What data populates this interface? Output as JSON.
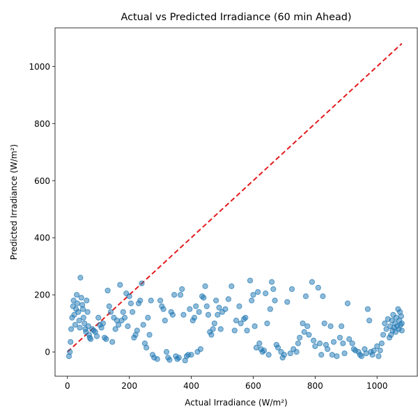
{
  "chart_data": {
    "type": "scatter",
    "title": "Actual vs Predicted Irradiance (60 min Ahead)",
    "xlabel": "Actual Irradiance (W/m²)",
    "ylabel": "Predicted Irradiance (W/m²)",
    "xlim": [
      -40,
      1130
    ],
    "ylim": [
      -85,
      1135
    ],
    "xticks": [
      0,
      200,
      400,
      600,
      800,
      1000
    ],
    "yticks": [
      0,
      200,
      400,
      600,
      800,
      1000
    ],
    "xtick_labels": [
      "0",
      "200",
      "400",
      "600",
      "800",
      "1000"
    ],
    "ytick_labels": [
      "0",
      "200",
      "400",
      "600",
      "800",
      "1000"
    ],
    "grid": false,
    "colors": {
      "points": "#1f77b4",
      "reference_line": "#e31a1c"
    },
    "reference_line": {
      "style": "dashed",
      "x": [
        0,
        1080
      ],
      "y": [
        0,
        1080
      ]
    },
    "series": [
      {
        "points": [
          [
            5,
            -15
          ],
          [
            8,
            0
          ],
          [
            10,
            35
          ],
          [
            12,
            80
          ],
          [
            15,
            120
          ],
          [
            18,
            160
          ],
          [
            20,
            180
          ],
          [
            22,
            130
          ],
          [
            25,
            95
          ],
          [
            28,
            150
          ],
          [
            30,
            200
          ],
          [
            32,
            170
          ],
          [
            35,
            140
          ],
          [
            38,
            110
          ],
          [
            40,
            85
          ],
          [
            42,
            260
          ],
          [
            45,
            190
          ],
          [
            48,
            165
          ],
          [
            50,
            150
          ],
          [
            52,
            120
          ],
          [
            55,
            100
          ],
          [
            58,
            80
          ],
          [
            60,
            70
          ],
          [
            62,
            180
          ],
          [
            65,
            140
          ],
          [
            68,
            90
          ],
          [
            70,
            60
          ],
          [
            72,
            50
          ],
          [
            75,
            45
          ],
          [
            80,
            80
          ],
          [
            85,
            75
          ],
          [
            90,
            70
          ],
          [
            95,
            55
          ],
          [
            100,
            120
          ],
          [
            105,
            95
          ],
          [
            110,
            85
          ],
          [
            115,
            100
          ],
          [
            120,
            50
          ],
          [
            125,
            45
          ],
          [
            130,
            215
          ],
          [
            135,
            160
          ],
          [
            140,
            140
          ],
          [
            145,
            35
          ],
          [
            150,
            120
          ],
          [
            155,
            80
          ],
          [
            160,
            110
          ],
          [
            165,
            95
          ],
          [
            170,
            235
          ],
          [
            175,
            110
          ],
          [
            180,
            140
          ],
          [
            185,
            120
          ],
          [
            190,
            205
          ],
          [
            195,
            90
          ],
          [
            200,
            195
          ],
          [
            205,
            170
          ],
          [
            210,
            140
          ],
          [
            215,
            50
          ],
          [
            220,
            60
          ],
          [
            225,
            75
          ],
          [
            230,
            170
          ],
          [
            235,
            180
          ],
          [
            240,
            240
          ],
          [
            245,
            95
          ],
          [
            250,
            30
          ],
          [
            255,
            15
          ],
          [
            260,
            120
          ],
          [
            265,
            60
          ],
          [
            270,
            180
          ],
          [
            275,
            -10
          ],
          [
            280,
            -20
          ],
          [
            290,
            -25
          ],
          [
            300,
            180
          ],
          [
            305,
            160
          ],
          [
            310,
            150
          ],
          [
            315,
            110
          ],
          [
            320,
            0
          ],
          [
            325,
            -20
          ],
          [
            330,
            -28
          ],
          [
            335,
            140
          ],
          [
            340,
            130
          ],
          [
            345,
            200
          ],
          [
            350,
            -15
          ],
          [
            355,
            -25
          ],
          [
            360,
            -20
          ],
          [
            365,
            200
          ],
          [
            370,
            220
          ],
          [
            375,
            130
          ],
          [
            380,
            -30
          ],
          [
            385,
            -15
          ],
          [
            390,
            -10
          ],
          [
            395,
            150
          ],
          [
            400,
            -10
          ],
          [
            405,
            110
          ],
          [
            410,
            120
          ],
          [
            415,
            160
          ],
          [
            420,
            0
          ],
          [
            425,
            140
          ],
          [
            430,
            10
          ],
          [
            435,
            195
          ],
          [
            440,
            190
          ],
          [
            445,
            230
          ],
          [
            450,
            160
          ],
          [
            455,
            130
          ],
          [
            460,
            70
          ],
          [
            465,
            60
          ],
          [
            470,
            80
          ],
          [
            475,
            100
          ],
          [
            480,
            180
          ],
          [
            485,
            130
          ],
          [
            490,
            155
          ],
          [
            495,
            80
          ],
          [
            500,
            140
          ],
          [
            510,
            150
          ],
          [
            520,
            185
          ],
          [
            530,
            230
          ],
          [
            540,
            75
          ],
          [
            545,
            110
          ],
          [
            555,
            160
          ],
          [
            560,
            100
          ],
          [
            570,
            115
          ],
          [
            575,
            120
          ],
          [
            580,
            75
          ],
          [
            590,
            250
          ],
          [
            595,
            180
          ],
          [
            600,
            200
          ],
          [
            605,
            90
          ],
          [
            610,
            15
          ],
          [
            615,
            210
          ],
          [
            620,
            30
          ],
          [
            625,
            10
          ],
          [
            630,
            0
          ],
          [
            635,
            5
          ],
          [
            640,
            205
          ],
          [
            645,
            100
          ],
          [
            650,
            -10
          ],
          [
            655,
            150
          ],
          [
            660,
            245
          ],
          [
            665,
            220
          ],
          [
            670,
            180
          ],
          [
            675,
            25
          ],
          [
            680,
            15
          ],
          [
            690,
            0
          ],
          [
            695,
            -20
          ],
          [
            700,
            -10
          ],
          [
            710,
            175
          ],
          [
            720,
            -5
          ],
          [
            725,
            220
          ],
          [
            730,
            10
          ],
          [
            740,
            0
          ],
          [
            745,
            30
          ],
          [
            750,
            50
          ],
          [
            760,
            100
          ],
          [
            765,
            70
          ],
          [
            770,
            195
          ],
          [
            775,
            90
          ],
          [
            780,
            60
          ],
          [
            790,
            245
          ],
          [
            795,
            40
          ],
          [
            800,
            20
          ],
          [
            810,
            225
          ],
          [
            815,
            30
          ],
          [
            820,
            -10
          ],
          [
            825,
            195
          ],
          [
            830,
            100
          ],
          [
            835,
            25
          ],
          [
            840,
            10
          ],
          [
            850,
            90
          ],
          [
            855,
            -10
          ],
          [
            860,
            35
          ],
          [
            870,
            -15
          ],
          [
            880,
            50
          ],
          [
            885,
            90
          ],
          [
            890,
            30
          ],
          [
            895,
            -5
          ],
          [
            905,
            170
          ],
          [
            910,
            45
          ],
          [
            920,
            30
          ],
          [
            925,
            10
          ],
          [
            930,
            5
          ],
          [
            940,
            0
          ],
          [
            945,
            -10
          ],
          [
            950,
            -15
          ],
          [
            960,
            10
          ],
          [
            965,
            -5
          ],
          [
            970,
            150
          ],
          [
            975,
            110
          ],
          [
            980,
            0
          ],
          [
            985,
            -10
          ],
          [
            990,
            5
          ],
          [
            1000,
            20
          ],
          [
            1005,
            -15
          ],
          [
            1010,
            5
          ],
          [
            1015,
            30
          ],
          [
            1020,
            60
          ],
          [
            1025,
            100
          ],
          [
            1030,
            80
          ],
          [
            1035,
            115
          ],
          [
            1040,
            50
          ],
          [
            1042,
            90
          ],
          [
            1045,
            60
          ],
          [
            1048,
            110
          ],
          [
            1050,
            75
          ],
          [
            1052,
            130
          ],
          [
            1055,
            85
          ],
          [
            1058,
            100
          ],
          [
            1060,
            70
          ],
          [
            1062,
            120
          ],
          [
            1065,
            90
          ],
          [
            1068,
            150
          ],
          [
            1070,
            80
          ],
          [
            1072,
            110
          ],
          [
            1074,
            140
          ],
          [
            1076,
            95
          ],
          [
            1078,
            125
          ],
          [
            1080,
            100
          ],
          [
            1080,
            75
          ]
        ]
      }
    ]
  }
}
